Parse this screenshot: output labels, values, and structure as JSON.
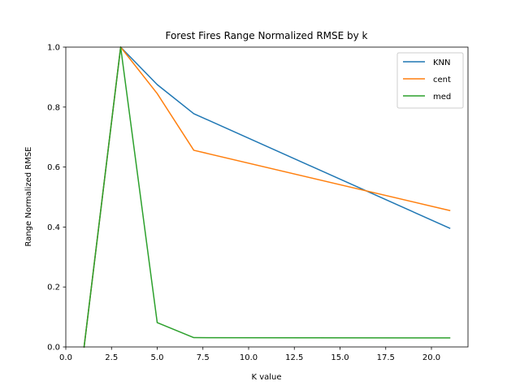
{
  "chart_data": {
    "type": "line",
    "title": "Forest Fires Range Normalized RMSE by k",
    "xlabel": "K value",
    "ylabel": "Range Normalized RMSE",
    "xlim": [
      0,
      22
    ],
    "ylim": [
      0,
      1
    ],
    "xticks": [
      0,
      2.5,
      5,
      7.5,
      10,
      12.5,
      15,
      17.5,
      20
    ],
    "xtick_labels": [
      "0.0",
      "2.5",
      "5.0",
      "7.5",
      "10.0",
      "12.5",
      "15.0",
      "17.5",
      "20.0"
    ],
    "yticks": [
      0,
      0.2,
      0.4,
      0.6,
      0.8,
      1.0
    ],
    "ytick_labels": [
      "0.0",
      "0.2",
      "0.4",
      "0.6",
      "0.8",
      "1.0"
    ],
    "x": [
      1,
      3,
      5,
      7,
      21
    ],
    "series": [
      {
        "name": "KNN",
        "color": "#1f77b4",
        "values": [
          0.0,
          1.0,
          0.875,
          0.778,
          0.396
        ]
      },
      {
        "name": "cent",
        "color": "#ff7f0e",
        "values": [
          0.0,
          1.0,
          0.845,
          0.656,
          0.455
        ]
      },
      {
        "name": "med",
        "color": "#2ca02c",
        "values": [
          0.0,
          1.0,
          0.081,
          0.031,
          0.03
        ]
      }
    ],
    "legend_position": "top-right",
    "grid": false
  }
}
